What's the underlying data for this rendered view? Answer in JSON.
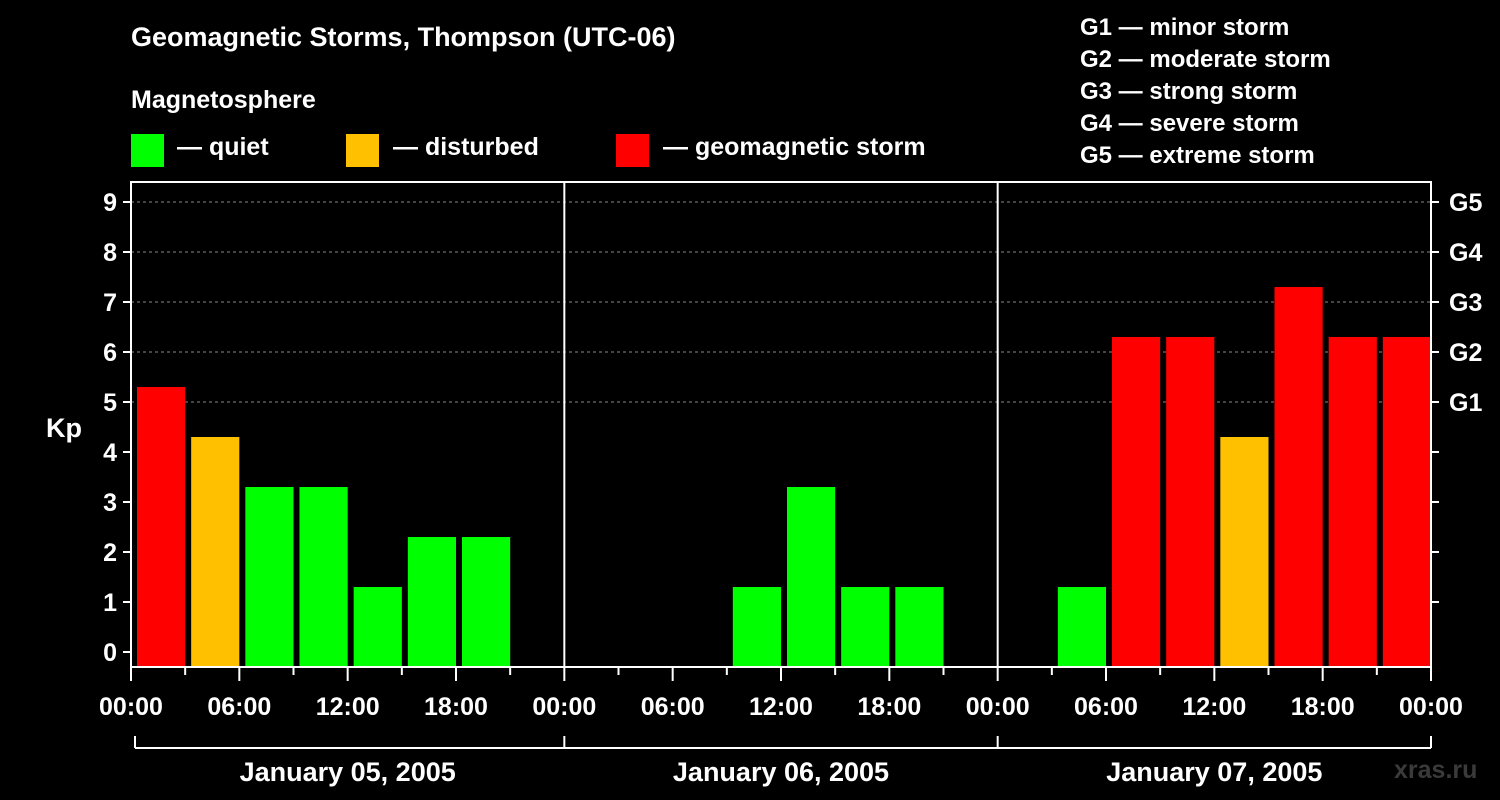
{
  "title": "Geomagnetic Storms, Thompson (UTC-06)",
  "magnetosphere_label": "Magnetosphere",
  "legend": [
    {
      "label": "— quiet",
      "color": "#00ff00"
    },
    {
      "label": "— disturbed",
      "color": "#ffc000"
    },
    {
      "label": "— geomagnetic storm",
      "color": "#ff0000"
    }
  ],
  "g_scale": [
    "G1 — minor storm",
    "G2 — moderate storm",
    "G3 — strong storm",
    "G4 — severe storm",
    "G5 — extreme storm"
  ],
  "watermark": "xras.ru",
  "colors": {
    "quiet": "#00ff00",
    "disturbed": "#ffc000",
    "storm": "#ff0000",
    "axis": "#ffffff",
    "grid": "#888888"
  },
  "chart_data": {
    "type": "bar",
    "ylabel": "Kp",
    "ylim": [
      0,
      9
    ],
    "yticks": [
      "0",
      "1",
      "2",
      "3",
      "4",
      "5",
      "6",
      "7",
      "8",
      "9"
    ],
    "right_ticks": [
      {
        "kp": 5,
        "label": "G1"
      },
      {
        "kp": 6,
        "label": "G2"
      },
      {
        "kp": 7,
        "label": "G3"
      },
      {
        "kp": 8,
        "label": "G4"
      },
      {
        "kp": 9,
        "label": "G5"
      }
    ],
    "xtick_labels": [
      "00:00",
      "06:00",
      "12:00",
      "18:00",
      "00:00",
      "06:00",
      "12:00",
      "18:00",
      "00:00",
      "06:00",
      "12:00",
      "18:00",
      "00:00"
    ],
    "days": [
      "January 05, 2005",
      "January 06, 2005",
      "January 07, 2005"
    ],
    "grid": "dashed horizontal at Kp 5-9",
    "bars": [
      {
        "day": "January 05, 2005",
        "start": "00:00",
        "kp": 5,
        "level": "storm"
      },
      {
        "day": "January 05, 2005",
        "start": "03:00",
        "kp": 4,
        "level": "disturbed"
      },
      {
        "day": "January 05, 2005",
        "start": "06:00",
        "kp": 3,
        "level": "quiet"
      },
      {
        "day": "January 05, 2005",
        "start": "09:00",
        "kp": 3,
        "level": "quiet"
      },
      {
        "day": "January 05, 2005",
        "start": "12:00",
        "kp": 1,
        "level": "quiet"
      },
      {
        "day": "January 05, 2005",
        "start": "15:00",
        "kp": 2,
        "level": "quiet"
      },
      {
        "day": "January 05, 2005",
        "start": "18:00",
        "kp": 2,
        "level": "quiet"
      },
      {
        "day": "January 06, 2005",
        "start": "09:00",
        "kp": 1,
        "level": "quiet"
      },
      {
        "day": "January 06, 2005",
        "start": "12:00",
        "kp": 3,
        "level": "quiet"
      },
      {
        "day": "January 06, 2005",
        "start": "15:00",
        "kp": 1,
        "level": "quiet"
      },
      {
        "day": "January 06, 2005",
        "start": "18:00",
        "kp": 1,
        "level": "quiet"
      },
      {
        "day": "January 07, 2005",
        "start": "03:00",
        "kp": 1,
        "level": "quiet"
      },
      {
        "day": "January 07, 2005",
        "start": "06:00",
        "kp": 6,
        "level": "storm"
      },
      {
        "day": "January 07, 2005",
        "start": "09:00",
        "kp": 6,
        "level": "storm"
      },
      {
        "day": "January 07, 2005",
        "start": "12:00",
        "kp": 4,
        "level": "disturbed"
      },
      {
        "day": "January 07, 2005",
        "start": "15:00",
        "kp": 7,
        "level": "storm"
      },
      {
        "day": "January 07, 2005",
        "start": "18:00",
        "kp": 6,
        "level": "storm"
      },
      {
        "day": "January 07, 2005",
        "start": "21:00",
        "kp": 6,
        "level": "storm"
      }
    ]
  }
}
